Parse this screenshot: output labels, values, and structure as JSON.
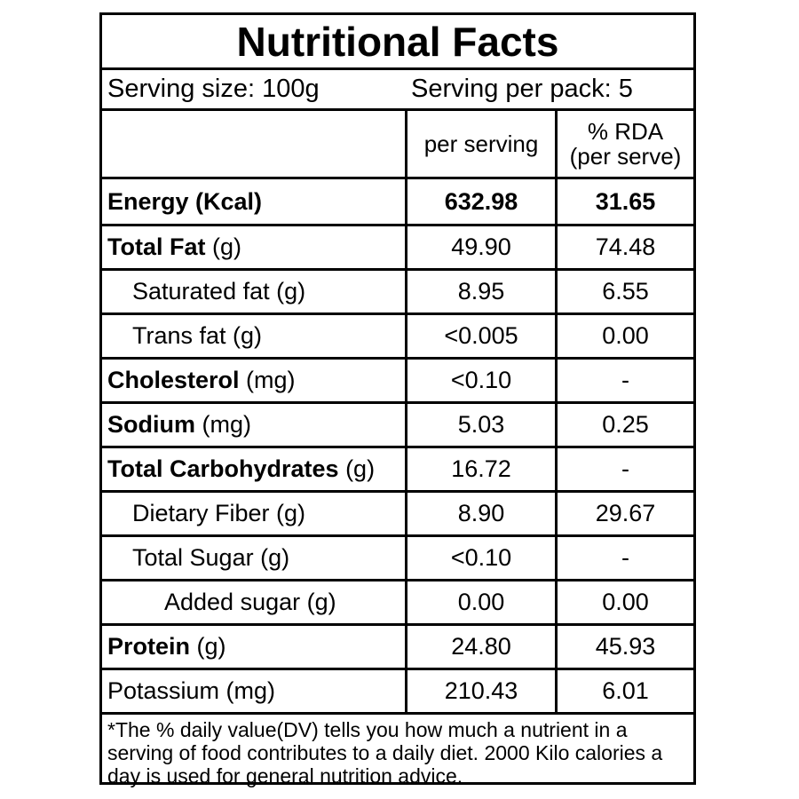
{
  "title": "Nutritional Facts",
  "serving_size": "Serving size: 100g",
  "serving_per_pack": "Serving per pack: 5",
  "header": {
    "per_serving": "per serving",
    "rda_line1": "% RDA",
    "rda_line2": "(per serve)"
  },
  "rows": [
    {
      "bold": "Energy (Kcal)",
      "unit": "",
      "per_serving": "632.98",
      "rda": "31.65"
    },
    {
      "bold": "Total Fat",
      "unit": " (g)",
      "per_serving": "49.90",
      "rda": "74.48"
    },
    {
      "label": "Saturated fat (g)",
      "per_serving": "8.95",
      "rda": "6.55"
    },
    {
      "label": "Trans fat (g)",
      "per_serving": "<0.005",
      "rda": "0.00"
    },
    {
      "bold": "Cholesterol",
      "unit": " (mg)",
      "per_serving": "<0.10",
      "rda": "-"
    },
    {
      "bold": "Sodium",
      "unit": " (mg)",
      "per_serving": "5.03",
      "rda": "0.25"
    },
    {
      "bold": "Total Carbohydrates",
      "unit": " (g)",
      "per_serving": "16.72",
      "rda": "-"
    },
    {
      "label": "Dietary Fiber (g)",
      "per_serving": "8.90",
      "rda": "29.67"
    },
    {
      "label": "Total Sugar (g)",
      "per_serving": "<0.10",
      "rda": "-"
    },
    {
      "label": "Added sugar (g)",
      "per_serving": "0.00",
      "rda": "0.00"
    },
    {
      "bold": "Protein",
      "unit": " (g)",
      "per_serving": "24.80",
      "rda": "45.93"
    },
    {
      "label": "Potassium (mg)",
      "per_serving": "210.43",
      "rda": "6.01"
    }
  ],
  "footer": "*The % daily value(DV) tells you how much a nutrient in a serving of food contributes to a daily diet. 2000 Kilo calories a day is used for general nutrition advice."
}
